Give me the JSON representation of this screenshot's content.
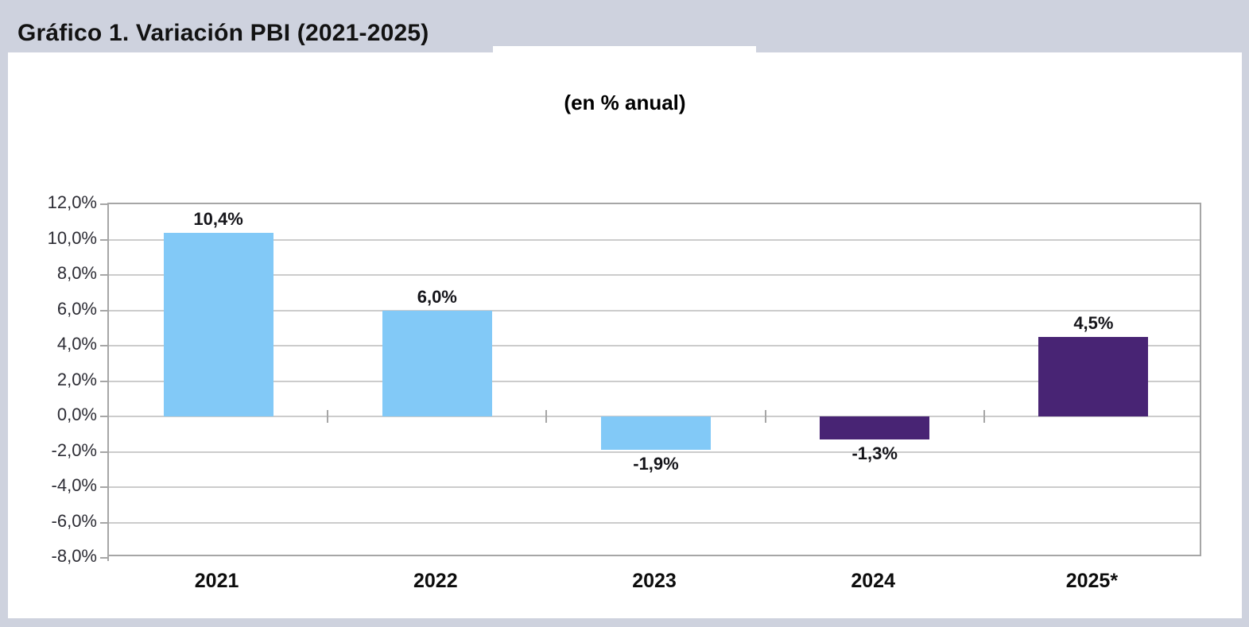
{
  "page": {
    "title": "Gráfico 1. Variación PBI (2021-2025)"
  },
  "chart_data": {
    "type": "bar",
    "title": "Gráfico 1. Variación PBI (2021-2025)",
    "subtitle": "(en % anual)",
    "categories": [
      "2021",
      "2022",
      "2023",
      "2024",
      "2025*"
    ],
    "values": [
      10.4,
      6.0,
      -1.9,
      -1.3,
      4.5
    ],
    "value_labels": [
      "10,4%",
      "6,0%",
      "-1,9%",
      "-1,3%",
      "4,5%"
    ],
    "bar_colors": [
      "#82c9f7",
      "#82c9f7",
      "#82c9f7",
      "#482474",
      "#482474"
    ],
    "xlabel": "",
    "ylabel": "",
    "ylim": [
      -8,
      12
    ],
    "ytick_step": 2,
    "ytick_labels": [
      "12,0%",
      "10,0%",
      "8,0%",
      "6,0%",
      "4,0%",
      "2,0%",
      "0,0%",
      "-2,0%",
      "-4,0%",
      "-6,0%",
      "-8,0%"
    ],
    "grid": true,
    "legend_position": "none"
  },
  "colors": {
    "slide_background": "#ced2de",
    "panel_background": "#ffffff",
    "gridline": "#cccccc",
    "plot_border": "#a6a6a6",
    "bar_positive_blue": "#82c9f7",
    "bar_purple": "#482474",
    "title_text": "#121212",
    "axis_text": "#2c2c34"
  }
}
